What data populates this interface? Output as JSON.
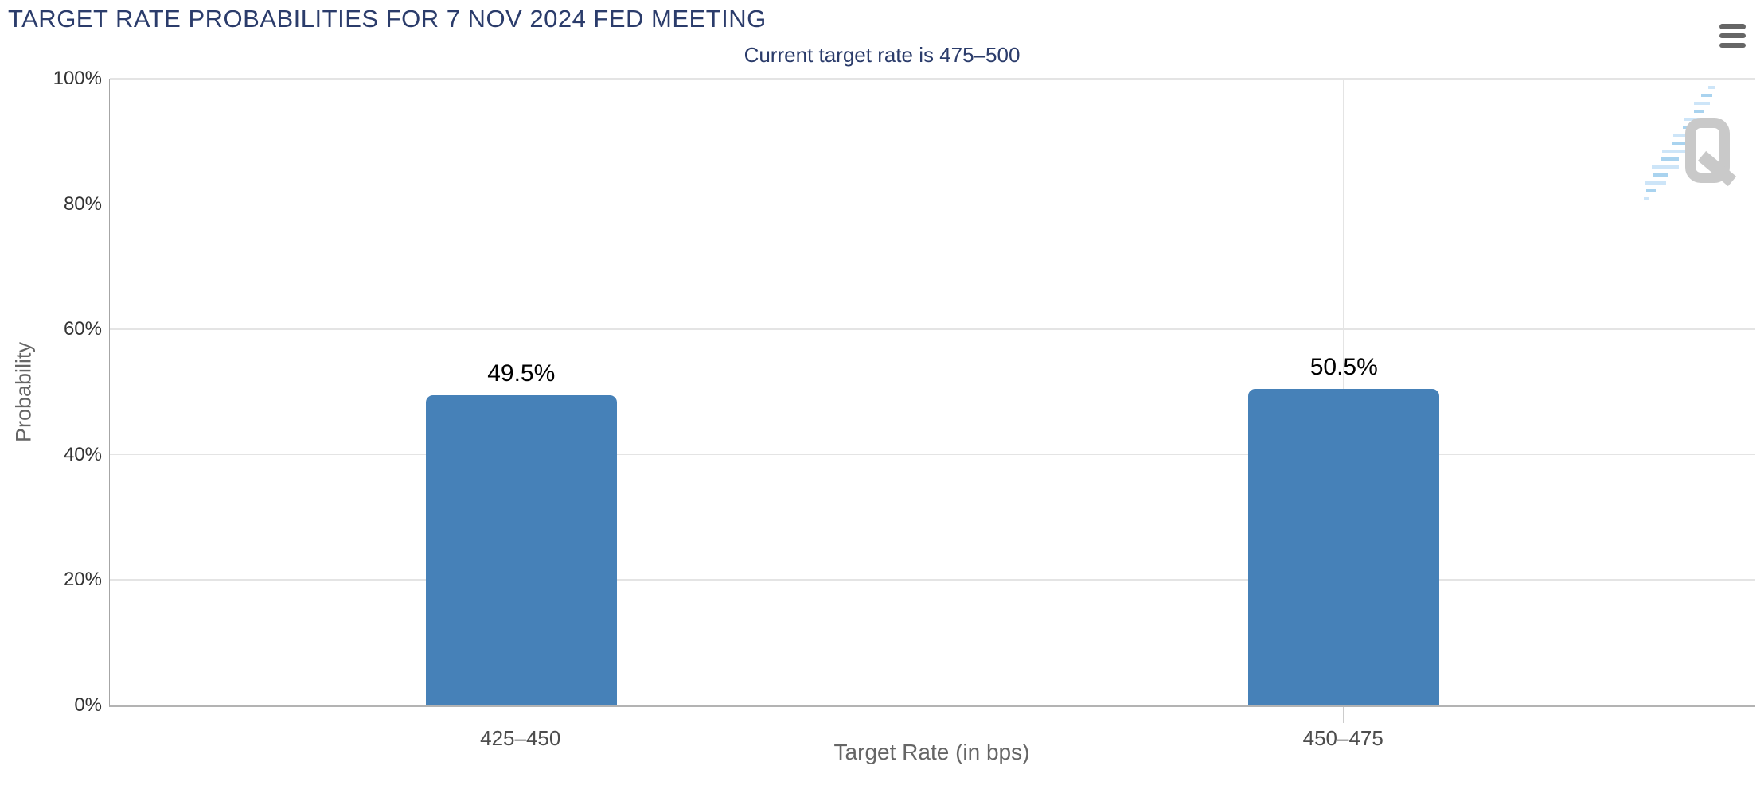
{
  "chart_data": {
    "type": "bar",
    "title": "TARGET RATE PROBABILITIES FOR 7 NOV 2024 FED MEETING",
    "subtitle": "Current target rate is 475–500",
    "categories": [
      "425–450",
      "450–475"
    ],
    "values": [
      49.5,
      50.5
    ],
    "data_labels": [
      "49.5%",
      "50.5%"
    ],
    "xlabel": "Target Rate (in bps)",
    "ylabel": "Probability",
    "ylim": [
      0,
      100
    ],
    "y_ticks": [
      0,
      20,
      40,
      60,
      80,
      100
    ],
    "y_tick_labels": [
      "0%",
      "20%",
      "40%",
      "60%",
      "80%",
      "100%"
    ],
    "grid": true,
    "legend": false,
    "bar_color": "#4681b8"
  },
  "toolbar": {
    "context_menu_icon": "hamburger-icon"
  },
  "watermark": {
    "letter": "Q"
  },
  "colors": {
    "title": "#2b3c6b",
    "subtitle": "#2b3c6b",
    "bar": "#4681b8",
    "grid": "#e4e4e4",
    "y_axis_line": "#a6a6a6",
    "x_axis_line": "#b3b3b3",
    "tick_mark": "#cccccc",
    "y_tick_label": "#333333",
    "x_category_label": "#4d4d4d",
    "axis_title": "#666666",
    "data_label": "#000000",
    "menu_icon": "#666666",
    "watermark_gray": "#c9c9c9",
    "watermark_blue_light": "#cde5f8",
    "watermark_blue": "#a9d3ef"
  }
}
